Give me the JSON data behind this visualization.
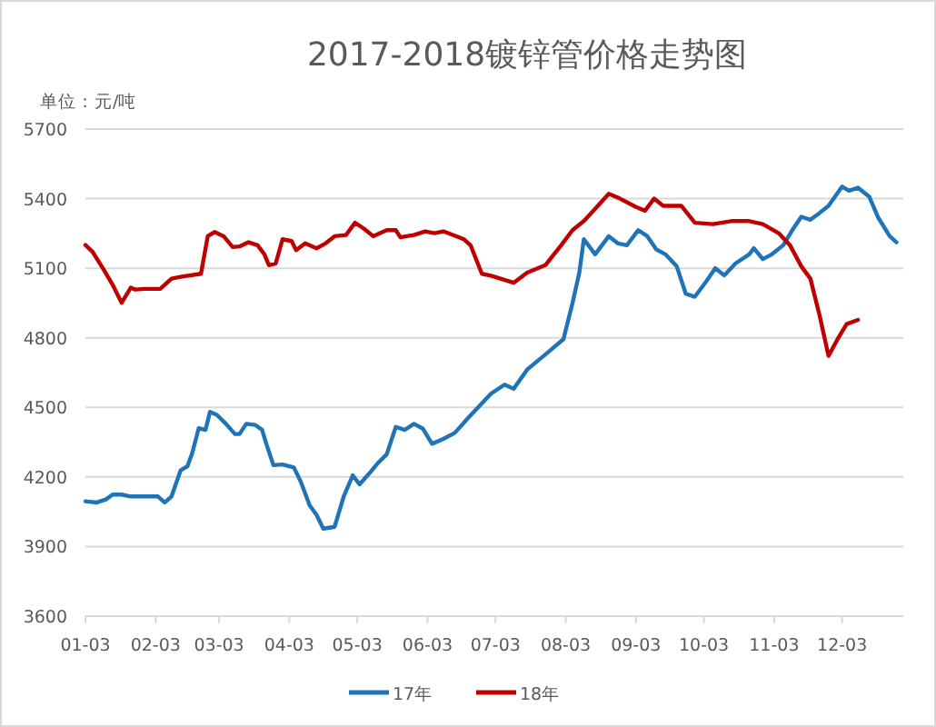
{
  "chart_data": {
    "type": "line",
    "title": "2017-2018镀锌管价格走势图",
    "ylabel": "单位：元/吨",
    "xlim": [
      "--01-03",
      "--12-30"
    ],
    "xticks": [
      {
        "value": "--01-03",
        "label": "01-03"
      },
      {
        "value": "--02-03",
        "label": "02-03"
      },
      {
        "value": "--03-03",
        "label": "03-03"
      },
      {
        "value": "--04-03",
        "label": "04-03"
      },
      {
        "value": "--05-03",
        "label": "05-03"
      },
      {
        "value": "--06-03",
        "label": "06-03"
      },
      {
        "value": "--07-03",
        "label": "07-03"
      },
      {
        "value": "--08-03",
        "label": "08-03"
      },
      {
        "value": "--09-03",
        "label": "09-03"
      },
      {
        "value": "--10-03",
        "label": "10-03"
      },
      {
        "value": "--11-03",
        "label": "11-03"
      },
      {
        "value": "--12-03",
        "label": "12-03"
      }
    ],
    "ylim": [
      3600,
      5700
    ],
    "yticks": [
      3600,
      3900,
      4200,
      4500,
      4800,
      5100,
      5400,
      5700
    ],
    "grid": "y",
    "legend": "bottom",
    "series": [
      {
        "name": "17年",
        "color": "#1f74b8",
        "x": [
          "--01-03",
          "--01-08",
          "--01-12",
          "--01-15",
          "--01-19",
          "--01-23",
          "--02-04",
          "--02-07",
          "--02-10",
          "--02-14",
          "--02-17",
          "--02-19",
          "--02-22",
          "--02-25",
          "--02-27",
          "--03-02",
          "--03-06",
          "--03-10",
          "--03-12",
          "--03-15",
          "--03-19",
          "--03-22",
          "--03-24",
          "--03-27",
          "--03-31",
          "--04-05",
          "--04-08",
          "--04-12",
          "--04-15",
          "--04-18",
          "--04-23",
          "--04-27",
          "--05-01",
          "--05-04",
          "--05-08",
          "--05-12",
          "--05-16",
          "--05-20",
          "--05-24",
          "--05-28",
          "--06-01",
          "--06-05",
          "--06-10",
          "--06-15",
          "--06-21",
          "--07-01",
          "--07-07",
          "--07-11",
          "--07-17",
          "--07-25",
          "--08-02",
          "--08-06",
          "--08-09",
          "--08-11",
          "--08-16",
          "--08-22",
          "--08-26",
          "--08-30",
          "--09-04",
          "--09-08",
          "--09-12",
          "--09-16",
          "--09-21",
          "--09-25",
          "--09-29",
          "--10-04",
          "--10-08",
          "--10-12",
          "--10-17",
          "--10-23",
          "--10-25",
          "--10-29",
          "--11-02",
          "--11-07",
          "--11-11",
          "--11-15",
          "--11-19",
          "--11-23",
          "--11-27",
          "--12-03",
          "--12-06",
          "--12-10",
          "--12-15",
          "--12-19",
          "--12-24",
          "--12-27"
        ],
        "values": [
          4095,
          4090,
          4103,
          4124,
          4124,
          4116,
          4116,
          4090,
          4116,
          4228,
          4246,
          4298,
          4410,
          4403,
          4481,
          4468,
          4429,
          4385,
          4385,
          4429,
          4424,
          4403,
          4338,
          4251,
          4254,
          4241,
          4181,
          4077,
          4037,
          3977,
          3985,
          4116,
          4207,
          4168,
          4212,
          4259,
          4298,
          4416,
          4403,
          4429,
          4408,
          4343,
          4364,
          4390,
          4455,
          4559,
          4598,
          4580,
          4663,
          4728,
          4794,
          4950,
          5081,
          5225,
          5160,
          5238,
          5207,
          5199,
          5264,
          5238,
          5181,
          5160,
          5108,
          4990,
          4977,
          5043,
          5100,
          5069,
          5121,
          5160,
          5186,
          5139,
          5160,
          5199,
          5264,
          5322,
          5309,
          5338,
          5369,
          5452,
          5434,
          5447,
          5408,
          5317,
          5238,
          5212
        ]
      },
      {
        "name": "18年",
        "color": "#c00000",
        "x": [
          "--01-03",
          "--01-06",
          "--01-11",
          "--01-15",
          "--01-19",
          "--01-23",
          "--01-25",
          "--01-29",
          "--02-05",
          "--02-10",
          "--02-14",
          "--02-23",
          "--02-26",
          "--03-01",
          "--03-05",
          "--03-09",
          "--03-12",
          "--03-16",
          "--03-20",
          "--03-23",
          "--03-25",
          "--03-28",
          "--03-31",
          "--04-04",
          "--04-06",
          "--04-10",
          "--04-15",
          "--04-19",
          "--04-23",
          "--04-28",
          "--05-02",
          "--05-06",
          "--05-10",
          "--05-16",
          "--05-20",
          "--05-22",
          "--05-28",
          "--06-02",
          "--06-06",
          "--06-10",
          "--06-19",
          "--06-22",
          "--06-27",
          "--07-01",
          "--07-11",
          "--07-17",
          "--07-25",
          "--08-01",
          "--08-06",
          "--08-11",
          "--08-16",
          "--08-22",
          "--08-27",
          "--09-03",
          "--09-07",
          "--09-11",
          "--09-15",
          "--09-23",
          "--09-29",
          "--10-07",
          "--10-15",
          "--10-23",
          "--10-29",
          "--11-05",
          "--11-10",
          "--11-15",
          "--11-19",
          "--11-23",
          "--11-27",
          "--12-01",
          "--12-05",
          "--12-10"
        ],
        "values": [
          5200,
          5173,
          5095,
          5029,
          4951,
          5016,
          5008,
          5011,
          5011,
          5055,
          5063,
          5076,
          5238,
          5256,
          5238,
          5191,
          5194,
          5212,
          5199,
          5160,
          5113,
          5121,
          5225,
          5217,
          5178,
          5207,
          5186,
          5207,
          5238,
          5243,
          5296,
          5270,
          5238,
          5264,
          5264,
          5233,
          5243,
          5259,
          5251,
          5259,
          5225,
          5199,
          5076,
          5068,
          5037,
          5081,
          5113,
          5199,
          5264,
          5303,
          5356,
          5421,
          5400,
          5364,
          5348,
          5400,
          5369,
          5369,
          5296,
          5290,
          5303,
          5303,
          5290,
          5251,
          5199,
          5108,
          5055,
          4899,
          4722,
          4794,
          4859,
          4877
        ]
      }
    ]
  }
}
